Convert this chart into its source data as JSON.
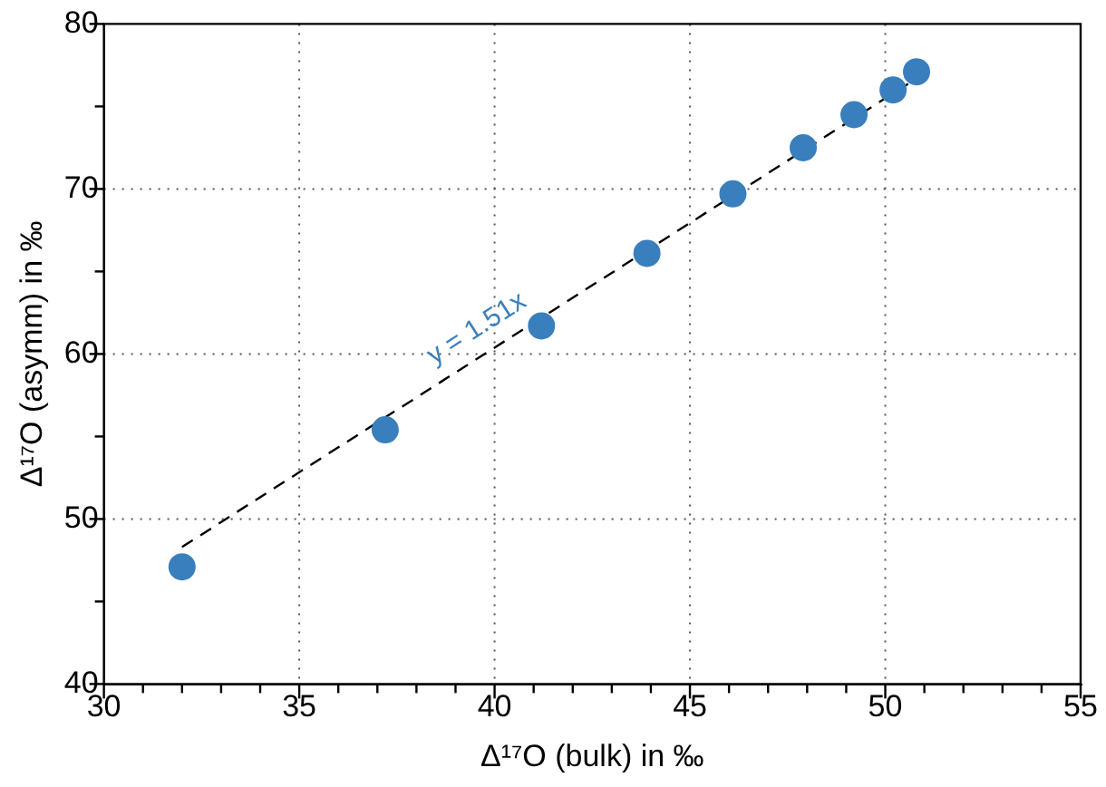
{
  "chart_data": {
    "type": "scatter",
    "xlabel": "Δ¹⁷O (bulk) in ‰",
    "ylabel": "Δ¹⁷O (asymm) in ‰",
    "xlim": [
      30,
      55
    ],
    "xticks": [
      30,
      35,
      40,
      45,
      50,
      55
    ],
    "ylim": [
      40,
      80
    ],
    "yticks": [
      40,
      50,
      60,
      70,
      80
    ],
    "grid": true,
    "legend": false,
    "marker": "circle",
    "series": [
      {
        "type": "scatter",
        "color": "#3a7fbd",
        "x": [
          32.0,
          37.2,
          41.2,
          43.9,
          46.1,
          47.9,
          49.2,
          50.2,
          50.8
        ],
        "values": [
          47.1,
          55.4,
          61.7,
          66.1,
          69.7,
          72.5,
          74.5,
          76.0,
          77.1
        ]
      },
      {
        "type": "line",
        "color": "#000000",
        "line_style": "dashed",
        "marker": "none",
        "x": [
          32.0,
          50.8
        ],
        "values": [
          48.3,
          76.7
        ]
      }
    ],
    "annotations": [
      "y = 1.51x"
    ]
  }
}
